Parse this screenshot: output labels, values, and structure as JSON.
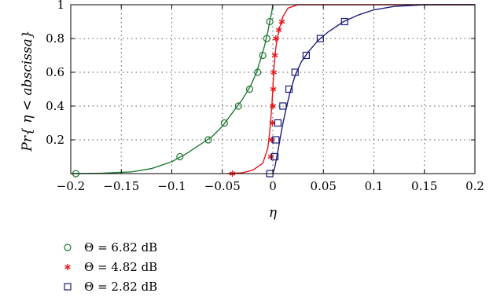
{
  "chart_data": {
    "type": "line",
    "title": "",
    "xlabel": "η",
    "ylabel": "Pr{ η < abscissa}",
    "xlim": [
      -0.2,
      0.2
    ],
    "ylim": [
      0,
      1
    ],
    "xticks": [
      -0.2,
      -0.15,
      -0.1,
      -0.05,
      0,
      0.05,
      0.1,
      0.15,
      0.2
    ],
    "xtick_labels": [
      "−0.2",
      "−0.15",
      "−0.1",
      "−0.05",
      "0",
      "0.05",
      "0.1",
      "0.15",
      "0.2"
    ],
    "yticks": [
      0.2,
      0.4,
      0.6,
      0.8,
      1
    ],
    "ytick_labels": [
      "0.2",
      "0.4",
      "0.6",
      "0.8",
      "1"
    ],
    "grid": true,
    "legend_position": "bottom-left",
    "series": [
      {
        "name": "Θ = 6.82 dB",
        "color": "#1f7a32",
        "marker": "circle",
        "curve": [
          [
            -0.2,
            0
          ],
          [
            -0.17,
            0.002
          ],
          [
            -0.14,
            0.01
          ],
          [
            -0.12,
            0.03
          ],
          [
            -0.1,
            0.07
          ],
          [
            -0.085,
            0.12
          ],
          [
            -0.07,
            0.18
          ],
          [
            -0.06,
            0.22
          ],
          [
            -0.05,
            0.28
          ],
          [
            -0.04,
            0.36
          ],
          [
            -0.03,
            0.44
          ],
          [
            -0.022,
            0.52
          ],
          [
            -0.016,
            0.6
          ],
          [
            -0.012,
            0.68
          ],
          [
            -0.008,
            0.76
          ],
          [
            -0.005,
            0.84
          ],
          [
            -0.003,
            0.9
          ],
          [
            -0.001,
            0.96
          ],
          [
            0.0,
            1.0
          ]
        ],
        "markers": [
          [
            -0.195,
            0
          ],
          [
            -0.092,
            0.1
          ],
          [
            -0.064,
            0.2
          ],
          [
            -0.048,
            0.3
          ],
          [
            -0.034,
            0.4
          ],
          [
            -0.023,
            0.5
          ],
          [
            -0.015,
            0.6
          ],
          [
            -0.01,
            0.7
          ],
          [
            -0.006,
            0.8
          ],
          [
            -0.003,
            0.9
          ]
        ]
      },
      {
        "name": "Θ = 4.82 dB",
        "color": "#e8141b",
        "marker": "asterisk",
        "curve": [
          [
            -0.045,
            0
          ],
          [
            -0.03,
            0.005
          ],
          [
            -0.02,
            0.02
          ],
          [
            -0.01,
            0.06
          ],
          [
            -0.005,
            0.15
          ],
          [
            -0.003,
            0.25
          ],
          [
            -0.001,
            0.4
          ],
          [
            0.0,
            0.5
          ],
          [
            0.001,
            0.62
          ],
          [
            0.003,
            0.75
          ],
          [
            0.006,
            0.85
          ],
          [
            0.01,
            0.93
          ],
          [
            0.015,
            0.98
          ],
          [
            0.025,
            1.0
          ],
          [
            0.2,
            1.0
          ]
        ],
        "markers": [
          [
            -0.04,
            0
          ],
          [
            -0.002,
            0.1
          ],
          [
            -0.001,
            0.2
          ],
          [
            -0.0005,
            0.3
          ],
          [
            0.0,
            0.4
          ],
          [
            0.0005,
            0.5
          ],
          [
            0.001,
            0.6
          ],
          [
            0.002,
            0.7
          ],
          [
            0.003,
            0.8
          ],
          [
            0.006,
            0.85
          ],
          [
            0.009,
            0.9
          ]
        ]
      },
      {
        "name": "Θ = 2.82 dB",
        "color": "#1c1c7a",
        "marker": "square",
        "curve": [
          [
            0.0,
            0
          ],
          [
            0.002,
            0.04
          ],
          [
            0.004,
            0.1
          ],
          [
            0.007,
            0.2
          ],
          [
            0.01,
            0.3
          ],
          [
            0.013,
            0.38
          ],
          [
            0.017,
            0.48
          ],
          [
            0.022,
            0.58
          ],
          [
            0.028,
            0.66
          ],
          [
            0.035,
            0.72
          ],
          [
            0.045,
            0.79
          ],
          [
            0.055,
            0.84
          ],
          [
            0.07,
            0.9
          ],
          [
            0.085,
            0.94
          ],
          [
            0.1,
            0.97
          ],
          [
            0.12,
            0.99
          ],
          [
            0.15,
            1.0
          ],
          [
            0.2,
            1.0
          ]
        ],
        "markers": [
          [
            -0.003,
            0
          ],
          [
            0.002,
            0.1
          ],
          [
            0.003,
            0.2
          ],
          [
            0.005,
            0.3
          ],
          [
            0.01,
            0.4
          ],
          [
            0.016,
            0.5
          ],
          [
            0.022,
            0.6
          ],
          [
            0.033,
            0.7
          ],
          [
            0.047,
            0.8
          ],
          [
            0.071,
            0.9
          ]
        ]
      }
    ]
  }
}
